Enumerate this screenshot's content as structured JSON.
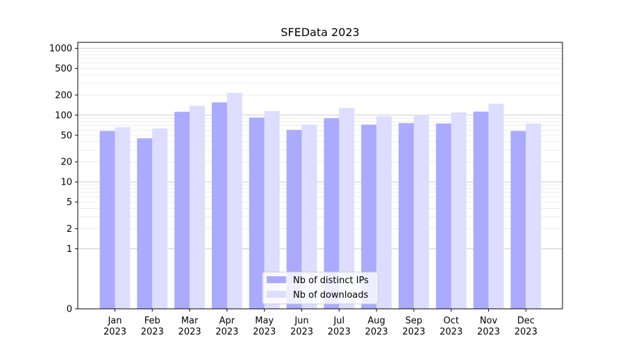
{
  "chart_data": {
    "type": "bar",
    "title": "SFEData 2023",
    "xlabel": "",
    "ylabel": "",
    "yscale": "symlog",
    "ylim": [
      0,
      1000
    ],
    "yticks": [
      0,
      1,
      2,
      5,
      10,
      20,
      50,
      100,
      200,
      500,
      1000
    ],
    "categories": [
      [
        "Jan",
        "2023"
      ],
      [
        "Feb",
        "2023"
      ],
      [
        "Mar",
        "2023"
      ],
      [
        "Apr",
        "2023"
      ],
      [
        "May",
        "2023"
      ],
      [
        "Jun",
        "2023"
      ],
      [
        "Jul",
        "2023"
      ],
      [
        "Aug",
        "2023"
      ],
      [
        "Sep",
        "2023"
      ],
      [
        "Oct",
        "2023"
      ],
      [
        "Nov",
        "2023"
      ],
      [
        "Dec",
        "2023"
      ]
    ],
    "series": [
      {
        "name": "Nb of distinct IPs",
        "color": "#aaaaff",
        "values": [
          58,
          45,
          112,
          155,
          92,
          60,
          90,
          72,
          76,
          75,
          113,
          58
        ]
      },
      {
        "name": "Nb of downloads",
        "color": "#ddddff",
        "values": [
          66,
          63,
          138,
          215,
          115,
          72,
          128,
          96,
          100,
          110,
          148,
          75
        ]
      }
    ],
    "grid": true,
    "legend": "lower-center"
  }
}
